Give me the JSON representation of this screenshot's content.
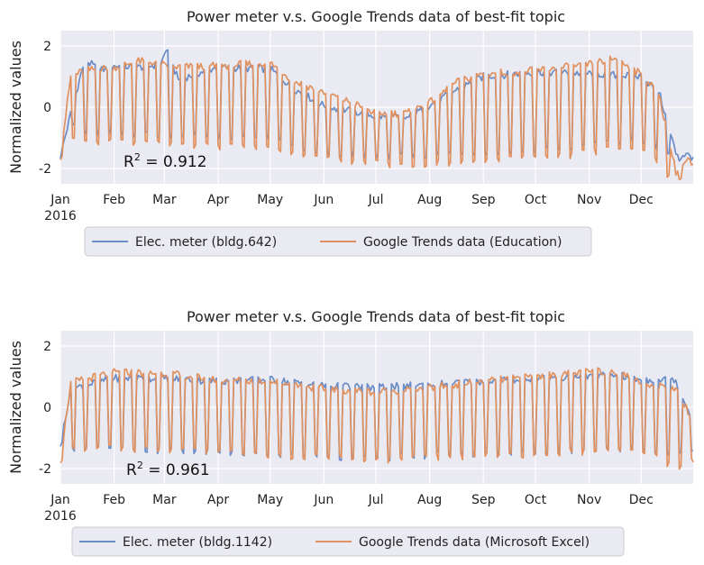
{
  "chart_data": [
    {
      "type": "line",
      "title": "Power meter v.s. Google Trends data of best-fit topic",
      "ylabel": "Normalized values",
      "ylim": [
        -2.5,
        2.5
      ],
      "yticks": [
        "2",
        "0",
        "-2"
      ],
      "ytick_values": [
        2,
        0,
        -2
      ],
      "xticks": [
        "Jan",
        "Feb",
        "Mar",
        "Apr",
        "May",
        "Jun",
        "Jul",
        "Aug",
        "Sep",
        "Oct",
        "Nov",
        "Dec"
      ],
      "xtick_year": "2016",
      "annotation": {
        "base": "R",
        "sup": "2",
        "rest": " = 0.912"
      },
      "grid": true,
      "legend": "below",
      "series": [
        {
          "name": "Elec. meter (bldg.642)",
          "color": "#6a8cc7",
          "weekday_profile": [
            [
              0,
              -1.6
            ],
            [
              6,
              -0.2
            ],
            [
              14,
              1.55
            ],
            [
              23,
              1.2
            ],
            [
              31,
              1.35
            ],
            [
              45,
              1.3
            ],
            [
              58,
              1.4
            ],
            [
              61,
              1.9
            ],
            [
              68,
              0.9
            ],
            [
              90,
              1.3
            ],
            [
              121,
              1.25
            ],
            [
              135,
              0.6
            ],
            [
              152,
              0.05
            ],
            [
              170,
              -0.15
            ],
            [
              182,
              -0.3
            ],
            [
              200,
              -0.35
            ],
            [
              213,
              0.05
            ],
            [
              228,
              0.55
            ],
            [
              244,
              1.0
            ],
            [
              274,
              1.15
            ],
            [
              305,
              1.1
            ],
            [
              334,
              1.0
            ],
            [
              345,
              0.55
            ],
            [
              355,
              -1.5
            ],
            [
              365,
              -1.6
            ]
          ],
          "weekend_profile": [
            [
              0,
              -1.6
            ],
            [
              6,
              -0.5
            ],
            [
              14,
              -0.85
            ],
            [
              31,
              -0.8
            ],
            [
              45,
              -0.9
            ],
            [
              61,
              -0.95
            ],
            [
              90,
              -1.0
            ],
            [
              121,
              -1.0
            ],
            [
              152,
              -1.5
            ],
            [
              182,
              -1.6
            ],
            [
              213,
              -1.55
            ],
            [
              244,
              -1.5
            ],
            [
              274,
              -1.4
            ],
            [
              305,
              -1.3
            ],
            [
              334,
              -1.0
            ],
            [
              355,
              -1.7
            ],
            [
              365,
              -1.6
            ]
          ]
        },
        {
          "name": "Google Trends data (Education)",
          "color": "#e1915f",
          "weekday_profile": [
            [
              0,
              -1.6
            ],
            [
              6,
              1.0
            ],
            [
              14,
              1.2
            ],
            [
              31,
              1.3
            ],
            [
              45,
              1.5
            ],
            [
              58,
              1.45
            ],
            [
              61,
              1.3
            ],
            [
              90,
              1.35
            ],
            [
              121,
              1.45
            ],
            [
              135,
              0.85
            ],
            [
              152,
              0.5
            ],
            [
              170,
              0.1
            ],
            [
              182,
              -0.2
            ],
            [
              200,
              -0.2
            ],
            [
              213,
              0.15
            ],
            [
              228,
              0.8
            ],
            [
              244,
              1.1
            ],
            [
              274,
              1.2
            ],
            [
              305,
              1.4
            ],
            [
              320,
              1.6
            ],
            [
              334,
              1.1
            ],
            [
              345,
              0.5
            ],
            [
              355,
              -2.1
            ],
            [
              365,
              -1.6
            ]
          ],
          "weekend_profile": [
            [
              0,
              -1.6
            ],
            [
              6,
              -1.0
            ],
            [
              14,
              -1.15
            ],
            [
              31,
              -1.1
            ],
            [
              61,
              -1.2
            ],
            [
              90,
              -1.3
            ],
            [
              121,
              -1.35
            ],
            [
              152,
              -1.7
            ],
            [
              182,
              -1.85
            ],
            [
              213,
              -1.85
            ],
            [
              244,
              -1.75
            ],
            [
              274,
              -1.65
            ],
            [
              305,
              -1.5
            ],
            [
              334,
              -1.2
            ],
            [
              355,
              -2.5
            ],
            [
              365,
              -1.9
            ]
          ]
        }
      ]
    },
    {
      "type": "line",
      "title": "Power meter v.s. Google Trends data of best-fit topic",
      "ylabel": "Normalized values",
      "ylim": [
        -2.5,
        2.5
      ],
      "yticks": [
        "2",
        "0",
        "-2"
      ],
      "ytick_values": [
        2,
        0,
        -2
      ],
      "xticks": [
        "Jan",
        "Feb",
        "Mar",
        "Apr",
        "May",
        "Jun",
        "Jul",
        "Aug",
        "Sep",
        "Oct",
        "Nov",
        "Dec"
      ],
      "xtick_year": "2016",
      "annotation": {
        "base": "R",
        "sup": "2",
        "rest": " = 0.961"
      },
      "grid": true,
      "legend": "below",
      "series": [
        {
          "name": "Elec. meter (bldg.1142)",
          "color": "#6a8cc7",
          "weekday_profile": [
            [
              0,
              -1.15
            ],
            [
              6,
              0.6
            ],
            [
              31,
              0.95
            ],
            [
              61,
              0.95
            ],
            [
              90,
              0.85
            ],
            [
              121,
              0.9
            ],
            [
              152,
              0.7
            ],
            [
              182,
              0.65
            ],
            [
              213,
              0.75
            ],
            [
              244,
              0.85
            ],
            [
              274,
              0.95
            ],
            [
              305,
              1.0
            ],
            [
              320,
              1.05
            ],
            [
              334,
              0.9
            ],
            [
              355,
              0.9
            ],
            [
              365,
              -0.5
            ]
          ],
          "weekend_profile": [
            [
              0,
              -1.2
            ],
            [
              6,
              -1.3
            ],
            [
              31,
              -1.35
            ],
            [
              61,
              -1.4
            ],
            [
              90,
              -1.45
            ],
            [
              121,
              -1.5
            ],
            [
              152,
              -1.6
            ],
            [
              182,
              -1.65
            ],
            [
              213,
              -1.55
            ],
            [
              244,
              -1.5
            ],
            [
              274,
              -1.45
            ],
            [
              305,
              -1.4
            ],
            [
              334,
              -1.3
            ],
            [
              355,
              -1.5
            ],
            [
              365,
              -1.3
            ]
          ]
        },
        {
          "name": "Google Trends data (Microsoft Excel)",
          "color": "#e1915f",
          "weekday_profile": [
            [
              0,
              -1.7
            ],
            [
              6,
              0.8
            ],
            [
              31,
              1.15
            ],
            [
              61,
              1.1
            ],
            [
              90,
              0.9
            ],
            [
              121,
              0.85
            ],
            [
              152,
              0.6
            ],
            [
              182,
              0.5
            ],
            [
              213,
              0.65
            ],
            [
              244,
              0.85
            ],
            [
              274,
              1.0
            ],
            [
              305,
              1.15
            ],
            [
              320,
              1.2
            ],
            [
              334,
              0.8
            ],
            [
              355,
              0.6
            ],
            [
              365,
              -0.4
            ]
          ],
          "weekend_profile": [
            [
              0,
              -1.7
            ],
            [
              6,
              -1.4
            ],
            [
              31,
              -1.35
            ],
            [
              61,
              -1.4
            ],
            [
              90,
              -1.45
            ],
            [
              121,
              -1.55
            ],
            [
              152,
              -1.65
            ],
            [
              182,
              -1.7
            ],
            [
              213,
              -1.65
            ],
            [
              244,
              -1.6
            ],
            [
              274,
              -1.5
            ],
            [
              305,
              -1.45
            ],
            [
              334,
              -1.3
            ],
            [
              355,
              -2.0
            ],
            [
              365,
              -1.7
            ]
          ]
        }
      ]
    }
  ]
}
